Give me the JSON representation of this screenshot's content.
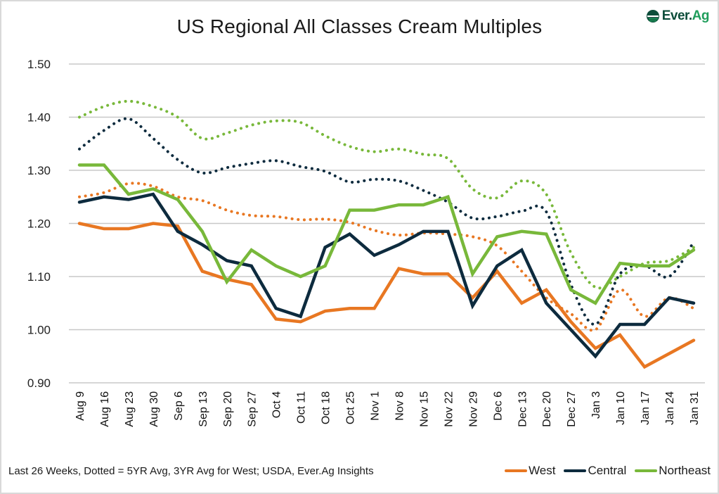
{
  "brand": {
    "logo_text_main": "Ever.",
    "logo_text_accent": "Ag"
  },
  "footer": {
    "note": "Last 26 Weeks, Dotted = 5YR Avg, 3YR Avg for West; USDA, Ever.Ag Insights"
  },
  "chart_data": {
    "type": "line",
    "title": "US Regional All Classes Cream Multiples",
    "xlabel": "",
    "ylabel": "",
    "ylim": [
      0.9,
      1.5
    ],
    "yticks": [
      "1.50",
      "1.40",
      "1.30",
      "1.20",
      "1.10",
      "1.00",
      "0.90"
    ],
    "grid": true,
    "legend_position": "bottom-right",
    "categories": [
      "Aug 9",
      "Aug 16",
      "Aug 23",
      "Aug 30",
      "Sep 6",
      "Sep 13",
      "Sep 20",
      "Sep 27",
      "Oct 4",
      "Oct 11",
      "Oct 18",
      "Oct 25",
      "Nov 1",
      "Nov 8",
      "Nov 15",
      "Nov 22",
      "Nov 29",
      "Dec 6",
      "Dec 13",
      "Dec 20",
      "Dec 27",
      "Jan 3",
      "Jan 10",
      "Jan 17",
      "Jan 24",
      "Jan 31"
    ],
    "series": [
      {
        "name": "West",
        "style": "solid",
        "color": "#E87722",
        "in_legend": true,
        "values": [
          1.2,
          1.19,
          1.19,
          1.2,
          1.195,
          1.11,
          1.095,
          1.085,
          1.02,
          1.015,
          1.035,
          1.04,
          1.04,
          1.115,
          1.105,
          1.105,
          1.06,
          1.11,
          1.05,
          1.075,
          1.015,
          0.965,
          0.99,
          0.93,
          0.955,
          0.98
        ]
      },
      {
        "name": "Central",
        "style": "solid",
        "color": "#0D2B3E",
        "in_legend": true,
        "values": [
          1.24,
          1.25,
          1.245,
          1.255,
          1.185,
          1.16,
          1.13,
          1.12,
          1.04,
          1.025,
          1.155,
          1.18,
          1.14,
          1.16,
          1.185,
          1.185,
          1.045,
          1.12,
          1.15,
          1.05,
          1.0,
          0.95,
          1.01,
          1.01,
          1.06,
          1.05
        ]
      },
      {
        "name": "Northeast",
        "style": "solid",
        "color": "#78B83A",
        "in_legend": true,
        "values": [
          1.31,
          1.31,
          1.255,
          1.265,
          1.245,
          1.185,
          1.09,
          1.15,
          1.12,
          1.1,
          1.12,
          1.225,
          1.225,
          1.235,
          1.235,
          1.25,
          1.105,
          1.175,
          1.185,
          1.18,
          1.075,
          1.05,
          1.125,
          1.12,
          1.12,
          1.15
        ]
      },
      {
        "name": "West 3YR Avg",
        "style": "dotted",
        "color": "#E87722",
        "in_legend": false,
        "values": [
          1.25,
          1.258,
          1.275,
          1.27,
          1.25,
          1.243,
          1.225,
          1.215,
          1.213,
          1.207,
          1.208,
          1.202,
          1.187,
          1.178,
          1.182,
          1.18,
          1.175,
          1.158,
          1.11,
          1.06,
          1.03,
          1.0,
          1.075,
          1.025,
          1.06,
          1.04
        ]
      },
      {
        "name": "Central 5YR Avg",
        "style": "dotted",
        "color": "#0D2B3E",
        "in_legend": false,
        "values": [
          1.34,
          1.375,
          1.397,
          1.36,
          1.32,
          1.295,
          1.305,
          1.313,
          1.318,
          1.307,
          1.298,
          1.278,
          1.283,
          1.28,
          1.262,
          1.24,
          1.21,
          1.213,
          1.223,
          1.222,
          1.085,
          1.01,
          1.105,
          1.12,
          1.1,
          1.165
        ]
      },
      {
        "name": "Northeast 5YR Avg",
        "style": "dotted",
        "color": "#78B83A",
        "in_legend": false,
        "values": [
          1.4,
          1.42,
          1.43,
          1.42,
          1.4,
          1.36,
          1.37,
          1.385,
          1.393,
          1.39,
          1.365,
          1.345,
          1.335,
          1.34,
          1.33,
          1.322,
          1.265,
          1.248,
          1.28,
          1.255,
          1.145,
          1.08,
          1.1,
          1.125,
          1.13,
          1.155
        ]
      }
    ]
  }
}
